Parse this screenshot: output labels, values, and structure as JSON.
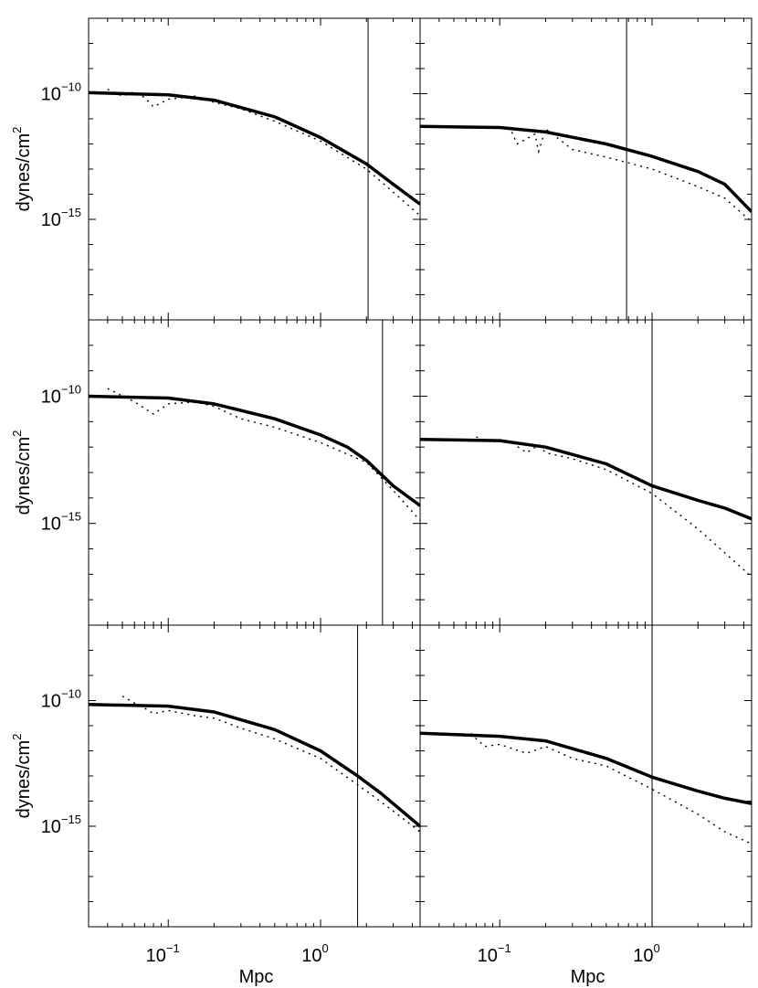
{
  "chart_data": {
    "type": "line",
    "layout": "3 rows x 2 columns, shared axes",
    "xscale": "log",
    "yscale": "log",
    "xlim": [
      0.03,
      4.5
    ],
    "ylim": [
      1e-19,
      1e-07
    ],
    "xlabel": "Mpc",
    "ylabel_text": "dynes/cm",
    "ylabel_superscript": "2",
    "xticks": [
      {
        "value": 0.1,
        "base": "10",
        "exp": "−1"
      },
      {
        "value": 1.0,
        "base": "10",
        "exp": "0"
      }
    ],
    "yticks": [
      {
        "value": 1e-10,
        "base": "10",
        "exp": "−10"
      },
      {
        "value": 1e-15,
        "base": "10",
        "exp": "−15"
      }
    ],
    "colors": {
      "line": "#000000",
      "frame": "#000000",
      "background": "#ffffff"
    },
    "panels": [
      {
        "row": 0,
        "col": 0,
        "vline_x": 2.05,
        "solid": [
          [
            0.03,
            1.1e-10
          ],
          [
            0.1,
            9e-11
          ],
          [
            0.2,
            5.5e-11
          ],
          [
            0.5,
            1.2e-11
          ],
          [
            1,
            1.8e-12
          ],
          [
            2,
            1.6e-13
          ],
          [
            3,
            2.5e-14
          ],
          [
            4.5,
            4e-15
          ]
        ],
        "dotted": [
          [
            0.04,
            1.5e-10
          ],
          [
            0.05,
            8e-11
          ],
          [
            0.06,
            1.2e-10
          ],
          [
            0.07,
            7e-11
          ],
          [
            0.08,
            3e-11
          ],
          [
            0.1,
            6e-11
          ],
          [
            0.15,
            8e-11
          ],
          [
            0.2,
            4.5e-11
          ],
          [
            0.3,
            2.5e-11
          ],
          [
            0.5,
            8e-12
          ],
          [
            1,
            1.3e-12
          ],
          [
            2,
            1e-13
          ],
          [
            3,
            1.2e-14
          ],
          [
            4.5,
            1.4e-15
          ]
        ]
      },
      {
        "row": 0,
        "col": 1,
        "vline_x": 0.68,
        "solid": [
          [
            0.03,
            5e-12
          ],
          [
            0.1,
            4.5e-12
          ],
          [
            0.2,
            3e-12
          ],
          [
            0.5,
            1e-12
          ],
          [
            1,
            3.2e-13
          ],
          [
            2,
            8e-14
          ],
          [
            3,
            2.5e-14
          ],
          [
            4.5,
            2e-15
          ]
        ],
        "dotted": [
          [
            0.12,
            3e-12
          ],
          [
            0.13,
            1e-12
          ],
          [
            0.15,
            1.6e-12
          ],
          [
            0.17,
            2.5e-12
          ],
          [
            0.18,
            5e-13
          ],
          [
            0.2,
            4e-12
          ],
          [
            0.3,
            6e-13
          ],
          [
            0.5,
            3e-13
          ],
          [
            1,
            1e-13
          ],
          [
            2,
            2e-14
          ],
          [
            3,
            7e-15
          ],
          [
            4.5,
            8e-16
          ]
        ]
      },
      {
        "row": 1,
        "col": 0,
        "vline_x": 2.55,
        "solid": [
          [
            0.03,
            1e-10
          ],
          [
            0.1,
            8.5e-11
          ],
          [
            0.2,
            5e-11
          ],
          [
            0.5,
            1.3e-11
          ],
          [
            1,
            3e-12
          ],
          [
            1.5,
            1e-12
          ],
          [
            2,
            3e-13
          ],
          [
            3,
            3e-14
          ],
          [
            4.5,
            5e-15
          ]
        ],
        "dotted": [
          [
            0.04,
            2e-10
          ],
          [
            0.06,
            6e-11
          ],
          [
            0.08,
            2e-11
          ],
          [
            0.1,
            5e-11
          ],
          [
            0.15,
            6e-11
          ],
          [
            0.2,
            4e-11
          ],
          [
            0.3,
            1.3e-11
          ],
          [
            0.5,
            6e-12
          ],
          [
            1,
            1.5e-12
          ],
          [
            2,
            2.5e-13
          ],
          [
            3,
            2e-14
          ],
          [
            4.5,
            1.3e-15
          ]
        ]
      },
      {
        "row": 1,
        "col": 1,
        "vline_x": 1.0,
        "solid": [
          [
            0.03,
            2e-12
          ],
          [
            0.1,
            1.8e-12
          ],
          [
            0.2,
            1e-12
          ],
          [
            0.5,
            2.2e-13
          ],
          [
            1,
            3e-14
          ],
          [
            2,
            8e-15
          ],
          [
            3,
            4e-15
          ],
          [
            4.5,
            1.5e-15
          ]
        ],
        "dotted": [
          [
            0.07,
            2.5e-12
          ],
          [
            0.09,
            1.5e-12
          ],
          [
            0.1,
            2e-12
          ],
          [
            0.12,
            1.5e-12
          ],
          [
            0.15,
            6e-13
          ],
          [
            0.18,
            1.2e-12
          ],
          [
            0.2,
            6e-13
          ],
          [
            0.3,
            3.5e-13
          ],
          [
            0.5,
            1.3e-13
          ],
          [
            1,
            1.5e-14
          ],
          [
            2,
            6e-16
          ],
          [
            4.5,
            8e-18
          ]
        ]
      },
      {
        "row": 2,
        "col": 0,
        "vline_x": 1.75,
        "solid": [
          [
            0.03,
            7e-11
          ],
          [
            0.1,
            6e-11
          ],
          [
            0.2,
            3.5e-11
          ],
          [
            0.5,
            7e-12
          ],
          [
            1,
            1e-12
          ],
          [
            1.75,
            1e-13
          ],
          [
            2.5,
            2e-14
          ],
          [
            4.5,
            1e-15
          ]
        ],
        "dotted": [
          [
            0.05,
            1.5e-10
          ],
          [
            0.06,
            8e-11
          ],
          [
            0.07,
            5e-11
          ],
          [
            0.08,
            3e-11
          ],
          [
            0.1,
            4e-11
          ],
          [
            0.15,
            2.5e-11
          ],
          [
            0.2,
            2e-11
          ],
          [
            0.3,
            8e-12
          ],
          [
            0.5,
            3e-12
          ],
          [
            1,
            5e-13
          ],
          [
            2,
            2.5e-14
          ],
          [
            3,
            4e-15
          ],
          [
            4.5,
            6e-16
          ]
        ]
      },
      {
        "row": 2,
        "col": 1,
        "vline_x": 1.0,
        "solid": [
          [
            0.03,
            5e-12
          ],
          [
            0.1,
            3.8e-12
          ],
          [
            0.2,
            2.5e-12
          ],
          [
            0.5,
            5e-13
          ],
          [
            1,
            9e-14
          ],
          [
            2,
            2.5e-14
          ],
          [
            3,
            1.3e-14
          ],
          [
            4.5,
            8e-15
          ]
        ],
        "dotted": [
          [
            0.065,
            5e-12
          ],
          [
            0.07,
            3e-12
          ],
          [
            0.08,
            1.5e-12
          ],
          [
            0.1,
            1.8e-12
          ],
          [
            0.15,
            8e-13
          ],
          [
            0.2,
            1.5e-12
          ],
          [
            0.3,
            5e-13
          ],
          [
            0.5,
            2.5e-13
          ],
          [
            1,
            3e-14
          ],
          [
            2,
            3e-15
          ],
          [
            3,
            6e-16
          ],
          [
            4.5,
            2e-16
          ]
        ]
      }
    ]
  }
}
